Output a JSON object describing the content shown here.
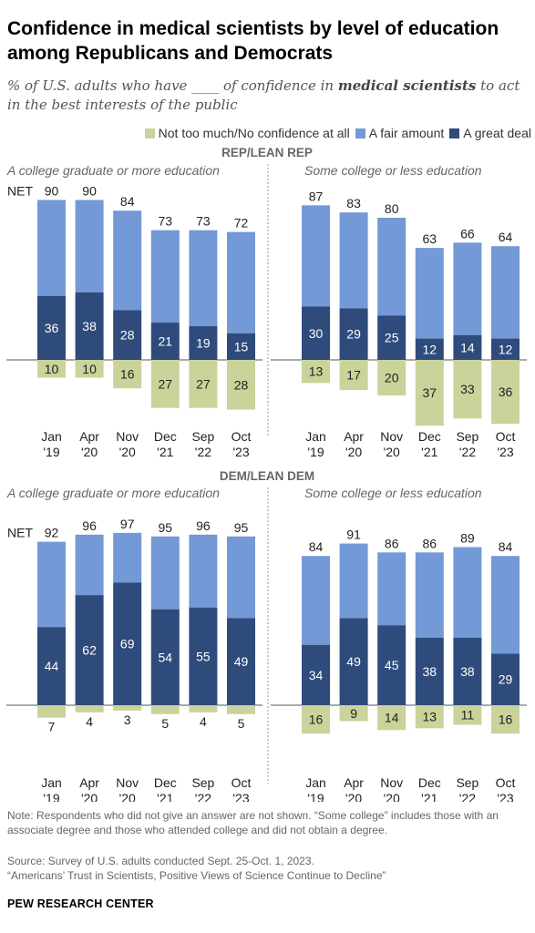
{
  "header": {
    "title": "Confidence in medical scientists by level of education among Republicans and Democrats",
    "subtitle_before": "% of U.S. adults who have ____ of confidence in ",
    "subtitle_emph": "medical scientists",
    "subtitle_after": " to act in the best interests of the public"
  },
  "footer": {
    "note": "Note: Respondents who did not give an answer are not shown. “Some college” includes those with an associate degree and those who attended college and did not obtain a degree.",
    "source": "Source: Survey of U.S. adults conducted Sept. 25-Oct. 1, 2023.",
    "report": "“Americans’ Trust in Scientists, Positive Views of Science Continue to Decline”",
    "brand": "PEW RESEARCH CENTER"
  },
  "colors": {
    "not_too_much": "#c9d39a",
    "fair_amount": "#7399d6",
    "great_deal": "#2f4b7c"
  },
  "chart_data": {
    "type": "bar",
    "stacked": "diverging",
    "net_label": "NET",
    "legend": [
      "Not too much/No confidence at all",
      "A fair amount",
      "A great deal"
    ],
    "legend_placement": "top-right",
    "categories": [
      [
        "Jan",
        "'19"
      ],
      [
        "Apr",
        "'20"
      ],
      [
        "Nov",
        "'20"
      ],
      [
        "Dec",
        "'21"
      ],
      [
        "Sep",
        "'22"
      ],
      [
        "Oct",
        "'23"
      ]
    ],
    "groups": [
      {
        "party": "REP/LEAN REP",
        "panels": [
          {
            "education": "A college graduate or more education",
            "great_deal": [
              36,
              38,
              28,
              21,
              19,
              15
            ],
            "net": [
              90,
              90,
              84,
              73,
              73,
              72
            ],
            "not_too_much": [
              10,
              10,
              16,
              27,
              27,
              28
            ]
          },
          {
            "education": "Some college or less education",
            "great_deal": [
              30,
              29,
              25,
              12,
              14,
              12
            ],
            "net": [
              87,
              83,
              80,
              63,
              66,
              64
            ],
            "not_too_much": [
              13,
              17,
              20,
              37,
              33,
              36
            ]
          }
        ]
      },
      {
        "party": "DEM/LEAN DEM",
        "panels": [
          {
            "education": "A college graduate or more education",
            "great_deal": [
              44,
              62,
              69,
              54,
              55,
              49
            ],
            "net": [
              92,
              96,
              97,
              95,
              96,
              95
            ],
            "not_too_much": [
              7,
              4,
              3,
              5,
              4,
              5
            ]
          },
          {
            "education": "Some college or less education",
            "great_deal": [
              34,
              49,
              45,
              38,
              38,
              29
            ],
            "net": [
              84,
              91,
              86,
              86,
              89,
              84
            ],
            "not_too_much": [
              16,
              9,
              14,
              13,
              11,
              16
            ]
          }
        ]
      }
    ]
  }
}
